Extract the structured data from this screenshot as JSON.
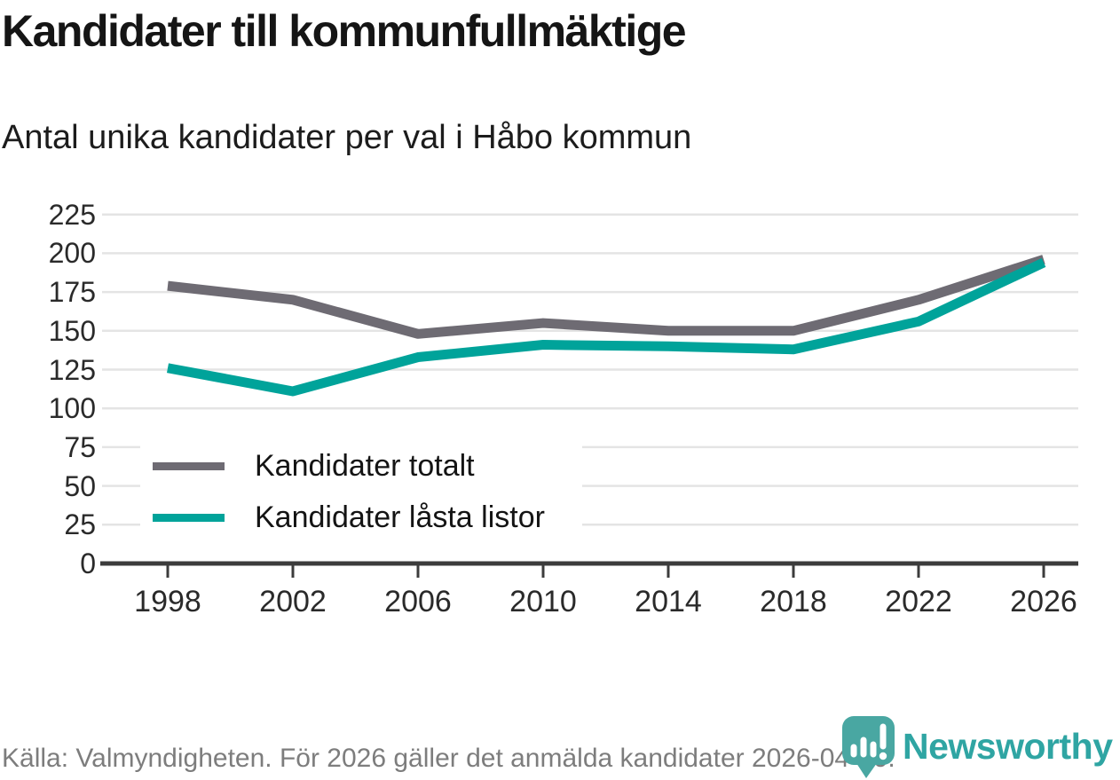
{
  "chart_data": {
    "type": "line",
    "title": "Kandidater till kommunfullmäktige",
    "subtitle": "Antal unika kandidater per val i Håbo kommun",
    "categories": [
      "1998",
      "2002",
      "2006",
      "2010",
      "2014",
      "2018",
      "2022",
      "2026"
    ],
    "series": [
      {
        "name": "Kandidater totalt",
        "color": "#6e6b73",
        "values": [
          179,
          170,
          148,
          155,
          150,
          150,
          170,
          196
        ]
      },
      {
        "name": "Kandidater låsta listor",
        "color": "#00a39a",
        "values": [
          126,
          111,
          133,
          141,
          140,
          138,
          156,
          194
        ]
      }
    ],
    "ylim": [
      0,
      225
    ],
    "yticks": [
      0,
      25,
      50,
      75,
      100,
      125,
      150,
      175,
      200,
      225
    ],
    "grid": true,
    "legend_position": "inside-bottom-left"
  },
  "footer": {
    "source": "Källa: Valmyndigheten. För 2026 gäller det anmälda kandidater 2026-04-10.",
    "brand": "Newsworthy"
  },
  "colors": {
    "series_total": "#6e6b73",
    "series_locked": "#00a39a",
    "brand_teal": "#2fa5a3",
    "brand_icon_teal": "#49a7a2"
  }
}
